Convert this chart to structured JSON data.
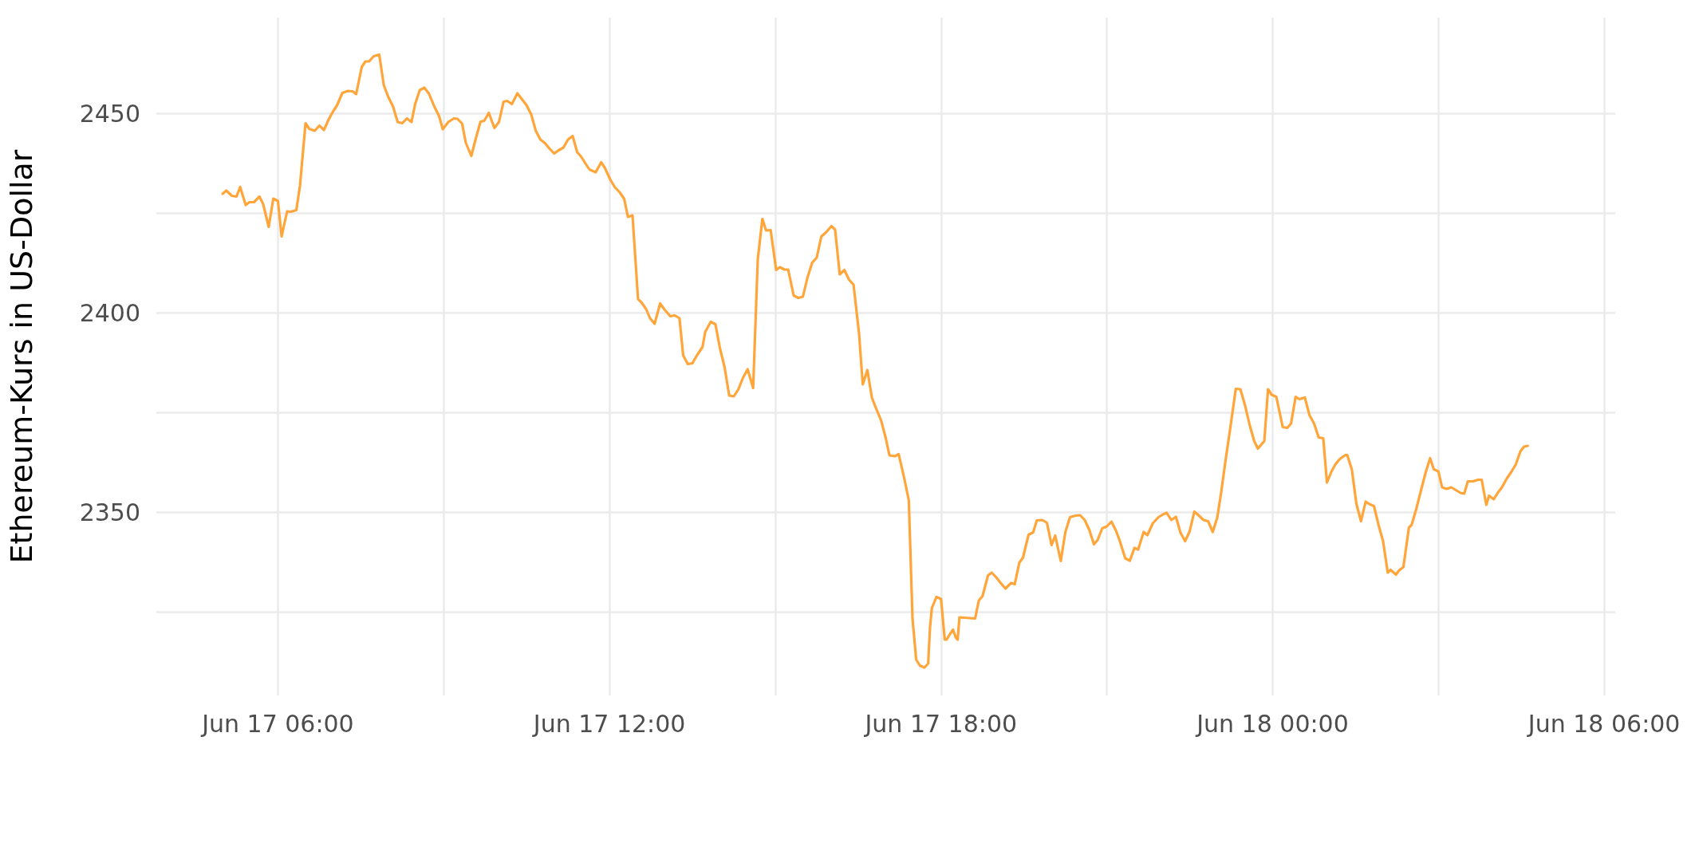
{
  "chart_data": {
    "type": "line",
    "ylabel": "Ethereum-Kurs in US-Dollar",
    "xlim": [
      "--06-17T03:48",
      "--06-18T06:12"
    ],
    "xticks": [
      {
        "value": "--06-17T06:00",
        "label": "Jun 17 06:00"
      },
      {
        "value": "--06-17T09:00",
        "label": null
      },
      {
        "value": "--06-17T12:00",
        "label": "Jun 17 12:00"
      },
      {
        "value": "--06-17T15:00",
        "label": null
      },
      {
        "value": "--06-17T18:00",
        "label": "Jun 17 18:00"
      },
      {
        "value": "--06-17T21:00",
        "label": null
      },
      {
        "value": "--06-18T00:00",
        "label": "Jun 18 00:00"
      },
      {
        "value": "--06-18T03:00",
        "label": null
      },
      {
        "value": "--06-18T06:00",
        "label": "Jun 18 06:00"
      }
    ],
    "ylim": [
      2304,
      2474
    ],
    "yticks": [
      {
        "value": 2325,
        "label": null
      },
      2350,
      {
        "value": 2375,
        "label": null
      },
      2400,
      {
        "value": 2425,
        "label": null
      },
      2450
    ],
    "grid": true,
    "marker": "none",
    "line_style": "solid",
    "series": [
      {
        "color": "#ffa53a",
        "x": [
          "--06-17T05:00",
          "--06-17T05:04",
          "--06-17T05:10",
          "--06-17T05:15",
          "--06-17T05:19",
          "--06-17T05:25",
          "--06-17T05:29",
          "--06-17T05:34",
          "--06-17T05:40",
          "--06-17T05:44",
          "--06-17T05:50",
          "--06-17T05:55",
          "--06-17T06:00",
          "--06-17T06:04",
          "--06-17T06:10",
          "--06-17T06:14",
          "--06-17T06:20",
          "--06-17T06:24",
          "--06-17T06:30",
          "--06-17T06:34",
          "--06-17T06:40",
          "--06-17T06:45",
          "--06-17T06:50",
          "--06-17T06:55",
          "--06-17T07:00",
          "--06-17T07:04",
          "--06-17T07:10",
          "--06-17T07:16",
          "--06-17T07:21",
          "--06-17T07:25",
          "--06-17T07:31",
          "--06-17T07:35",
          "--06-17T07:39",
          "--06-17T07:44",
          "--06-17T07:50",
          "--06-17T07:55",
          "--06-17T08:00",
          "--06-17T08:05",
          "--06-17T08:10",
          "--06-17T08:15",
          "--06-17T08:20",
          "--06-17T08:25",
          "--06-17T08:29",
          "--06-17T08:34",
          "--06-17T08:39",
          "--06-17T08:44",
          "--06-17T08:50",
          "--06-17T08:55",
          "--06-17T08:59",
          "--06-17T09:05",
          "--06-17T09:11",
          "--06-17T09:15",
          "--06-17T09:20",
          "--06-17T09:24",
          "--06-17T09:30",
          "--06-17T09:35",
          "--06-17T09:40",
          "--06-17T09:44",
          "--06-17T09:49",
          "--06-17T09:55",
          "--06-17T10:00",
          "--06-17T10:05",
          "--06-17T10:09",
          "--06-17T10:14",
          "--06-17T10:20",
          "--06-17T10:25",
          "--06-17T10:30",
          "--06-17T10:35",
          "--06-17T10:40",
          "--06-17T10:45",
          "--06-17T10:50",
          "--06-17T10:55",
          "--06-17T11:00",
          "--06-17T11:04",
          "--06-17T11:10",
          "--06-17T11:15",
          "--06-17T11:20",
          "--06-17T11:25",
          "--06-17T11:29",
          "--06-17T11:37",
          "--06-17T11:39",
          "--06-17T11:45",
          "--06-17T11:51",
          "--06-17T11:55",
          "--06-17T12:01",
          "--06-17T12:06",
          "--06-17T12:11",
          "--06-17T12:16",
          "--06-17T12:20",
          "--06-17T12:25",
          "--06-17T12:31",
          "--06-17T12:35",
          "--06-17T12:40",
          "--06-17T12:44",
          "--06-17T12:49",
          "--06-17T12:55",
          "--06-17T13:00",
          "--06-17T13:06",
          "--06-17T13:11",
          "--06-17T13:16",
          "--06-17T13:20",
          "--06-17T13:25",
          "--06-17T13:30",
          "--06-17T13:35",
          "--06-17T13:41",
          "--06-17T13:44",
          "--06-17T13:50",
          "--06-17T13:55",
          "--06-17T14:00",
          "--06-17T14:05",
          "--06-17T14:10",
          "--06-17T14:15",
          "--06-17T14:20",
          "--06-17T14:25",
          "--06-17T14:30",
          "--06-17T14:36",
          "--06-17T14:41",
          "--06-17T14:46",
          "--06-17T14:50",
          "--06-17T14:55",
          "--06-17T15:01",
          "--06-17T15:05",
          "--06-17T15:10",
          "--06-17T15:14",
          "--06-17T15:20",
          "--06-17T15:25",
          "--06-17T15:30",
          "--06-17T15:35",
          "--06-17T15:40",
          "--06-17T15:45",
          "--06-17T15:50",
          "--06-17T15:55",
          "--06-17T16:01",
          "--06-17T16:05",
          "--06-17T16:10",
          "--06-17T16:15",
          "--06-17T16:20",
          "--06-17T16:25",
          "--06-17T16:31",
          "--06-17T16:35",
          "--06-17T16:40",
          "--06-17T16:45",
          "--06-17T16:50",
          "--06-17T16:55",
          "--06-17T17:00",
          "--06-17T17:04",
          "--06-17T17:10",
          "--06-17T17:14",
          "--06-17T17:20",
          "--06-17T17:25",
          "--06-17T17:29",
          "--06-17T17:33",
          "--06-17T17:37",
          "--06-17T17:42",
          "--06-17T17:46",
          "--06-17T17:48",
          "--06-17T17:50",
          "--06-17T17:55",
          "--06-17T18:00",
          "--06-17T18:04",
          "--06-17T18:06",
          "--06-17T18:10",
          "--06-17T18:13",
          "--06-17T18:16",
          "--06-17T18:18",
          "--06-17T18:20",
          "--06-17T18:37",
          "--06-17T18:41",
          "--06-17T18:45",
          "--06-17T18:51",
          "--06-17T18:55",
          "--06-17T19:00",
          "--06-17T19:04",
          "--06-17T19:10",
          "--06-17T19:16",
          "--06-17T19:20",
          "--06-17T19:25",
          "--06-17T19:29",
          "--06-17T19:35",
          "--06-17T19:40",
          "--06-17T19:44",
          "--06-17T19:50",
          "--06-17T19:55",
          "--06-17T20:00",
          "--06-17T20:04",
          "--06-17T20:10",
          "--06-17T20:15",
          "--06-17T20:20",
          "--06-17T20:26",
          "--06-17T20:31",
          "--06-17T20:36",
          "--06-17T20:41",
          "--06-17T20:46",
          "--06-17T20:50",
          "--06-17T20:55",
          "--06-17T21:00",
          "--06-17T21:05",
          "--06-17T21:10",
          "--06-17T21:14",
          "--06-17T21:20",
          "--06-17T21:25",
          "--06-17T21:30",
          "--06-17T21:34",
          "--06-17T21:40",
          "--06-17T21:44",
          "--06-17T21:50",
          "--06-17T21:56",
          "--06-17T22:01",
          "--06-17T22:05",
          "--06-17T22:10",
          "--06-17T22:15",
          "--06-17T22:20",
          "--06-17T22:25",
          "--06-17T22:30",
          "--06-17T22:35",
          "--06-17T22:40",
          "--06-17T22:45",
          "--06-17T22:50",
          "--06-17T22:55",
          "--06-17T23:00",
          "--06-17T23:04",
          "--06-17T23:09",
          "--06-17T23:14",
          "--06-17T23:20",
          "--06-17T23:25",
          "--06-17T23:30",
          "--06-17T23:35",
          "--06-17T23:40",
          "--06-17T23:44",
          "--06-17T23:51",
          "--06-17T23:55",
          "--06-17T23:59",
          "--06-18T00:04",
          "--06-18T00:11",
          "--06-18T00:16",
          "--06-18T00:20",
          "--06-18T00:25",
          "--06-18T00:29",
          "--06-18T00:35",
          "--06-18T00:40",
          "--06-18T00:45",
          "--06-18T00:50",
          "--06-18T00:55",
          "--06-18T00:59",
          "--06-18T01:04",
          "--06-18T01:08",
          "--06-18T01:13",
          "--06-18T01:19",
          "--06-18T01:21",
          "--06-18T01:26",
          "--06-18T01:31",
          "--06-18T01:36",
          "--06-18T01:41",
          "--06-18T01:45",
          "--06-18T01:50",
          "--06-18T01:55",
          "--06-18T02:00",
          "--06-18T02:05",
          "--06-18T02:08",
          "--06-18T02:14",
          "--06-18T02:17",
          "--06-18T02:22",
          "--06-18T02:28",
          "--06-18T02:31",
          "--06-18T02:36",
          "--06-18T02:41",
          "--06-18T02:46",
          "--06-18T02:51",
          "--06-18T02:55",
          "--06-18T03:00",
          "--06-18T03:04",
          "--06-18T03:09",
          "--06-18T03:14",
          "--06-18T03:19",
          "--06-18T03:24",
          "--06-18T03:28",
          "--06-18T03:32",
          "--06-18T03:38",
          "--06-18T03:43",
          "--06-18T03:47",
          "--06-18T03:52",
          "--06-18T03:55",
          "--06-18T04:00",
          "--06-18T04:05",
          "--06-18T04:09",
          "--06-18T04:14",
          "--06-18T04:19",
          "--06-18T04:24",
          "--06-18T04:29",
          "--06-18T04:33",
          "--06-18T04:37"
        ],
        "values": [
          2429.8,
          2430.6,
          2429.3,
          2429.1,
          2431.5,
          2427.0,
          2427.7,
          2427.7,
          2429.1,
          2427.2,
          2421.5,
          2428.6,
          2428.0,
          2419.1,
          2425.4,
          2425.3,
          2425.7,
          2431.9,
          2447.5,
          2446.1,
          2445.6,
          2446.9,
          2445.8,
          2448.4,
          2450.5,
          2451.9,
          2455.1,
          2455.6,
          2455.5,
          2454.8,
          2461.6,
          2463.0,
          2463.0,
          2464.3,
          2464.7,
          2457.0,
          2454.0,
          2451.7,
          2447.8,
          2447.5,
          2448.7,
          2447.8,
          2452.3,
          2455.8,
          2456.4,
          2454.9,
          2451.6,
          2449.3,
          2446.0,
          2447.8,
          2448.7,
          2448.6,
          2447.4,
          2442.6,
          2439.3,
          2443.8,
          2447.9,
          2448.1,
          2450.1,
          2446.3,
          2447.8,
          2452.9,
          2453.1,
          2452.3,
          2455.0,
          2453.5,
          2452.0,
          2449.7,
          2445.6,
          2443.4,
          2442.5,
          2441.1,
          2439.9,
          2440.6,
          2441.4,
          2443.4,
          2444.3,
          2440.2,
          2439.2,
          2436.3,
          2435.8,
          2435.2,
          2437.7,
          2436.3,
          2433.3,
          2431.4,
          2430.2,
          2428.5,
          2424.0,
          2424.4,
          2403.4,
          2402.5,
          2400.8,
          2398.6,
          2397.2,
          2402.3,
          2400.7,
          2399.1,
          2399.3,
          2398.6,
          2389.3,
          2387.1,
          2387.3,
          2389.3,
          2391.4,
          2395.2,
          2397.7,
          2397.1,
          2391.0,
          2386.3,
          2379.2,
          2379.0,
          2380.8,
          2383.7,
          2385.8,
          2381.1,
          2413.3,
          2423.5,
          2420.6,
          2420.7,
          2410.7,
          2411.4,
          2410.8,
          2410.8,
          2404.3,
          2403.7,
          2404.0,
          2408.8,
          2412.5,
          2413.8,
          2419.1,
          2420.1,
          2421.7,
          2420.8,
          2409.6,
          2410.7,
          2408.3,
          2407.0,
          2394.7,
          2382.0,
          2385.6,
          2378.6,
          2375.7,
          2372.9,
          2368.5,
          2364.2,
          2364.0,
          2364.5,
          2358.5,
          2352.9,
          2323.3,
          2313.0,
          2311.5,
          2311.0,
          2312.0,
          2321.0,
          2325.9,
          2328.7,
          2328.2,
          2318.0,
          2318.0,
          2319.5,
          2320.5,
          2318.5,
          2318.0,
          2323.6,
          2323.3,
          2327.8,
          2328.9,
          2334.1,
          2334.8,
          2333.6,
          2332.4,
          2330.8,
          2332.2,
          2331.9,
          2337.3,
          2338.6,
          2344.3,
          2344.9,
          2347.9,
          2348.0,
          2347.3,
          2341.7,
          2344.1,
          2337.7,
          2345.0,
          2348.7,
          2349.1,
          2349.2,
          2348.0,
          2345.5,
          2341.9,
          2343.0,
          2345.9,
          2346.4,
          2347.6,
          2345.3,
          2342.8,
          2338.4,
          2337.8,
          2341.0,
          2340.6,
          2345.0,
          2344.2,
          2347.2,
          2348.7,
          2349.4,
          2349.8,
          2348.0,
          2348.8,
          2344.8,
          2342.7,
          2345.2,
          2350.1,
          2349.1,
          2348.0,
          2347.7,
          2345.0,
          2348.7,
          2354.7,
          2363.1,
          2371.0,
          2380.9,
          2380.8,
          2376.8,
          2371.9,
          2367.8,
          2365.9,
          2367.8,
          2380.8,
          2379.4,
          2378.9,
          2371.3,
          2371.1,
          2372.2,
          2378.9,
          2378.3,
          2378.7,
          2374.3,
          2372.2,
          2368.7,
          2368.5,
          2357.4,
          2360.2,
          2361.9,
          2363.3,
          2364.3,
          2364.3,
          2360.7,
          2352.0,
          2347.7,
          2352.6,
          2352.0,
          2351.5,
          2346.8,
          2342.6,
          2334.8,
          2335.5,
          2334.3,
          2335.3,
          2336.2,
          2346.1,
          2346.8,
          2350.8,
          2355.3,
          2359.8,
          2363.5,
          2360.7,
          2360.2,
          2356.2,
          2355.8,
          2356.2,
          2355.5,
          2354.8,
          2354.6,
          2357.7,
          2357.7,
          2358.1,
          2358.1,
          2351.8,
          2354.1,
          2353.2,
          2355.0,
          2356.2,
          2358.3,
          2360.0,
          2361.9,
          2365.2,
          2366.4,
          2366.6
        ]
      }
    ]
  }
}
